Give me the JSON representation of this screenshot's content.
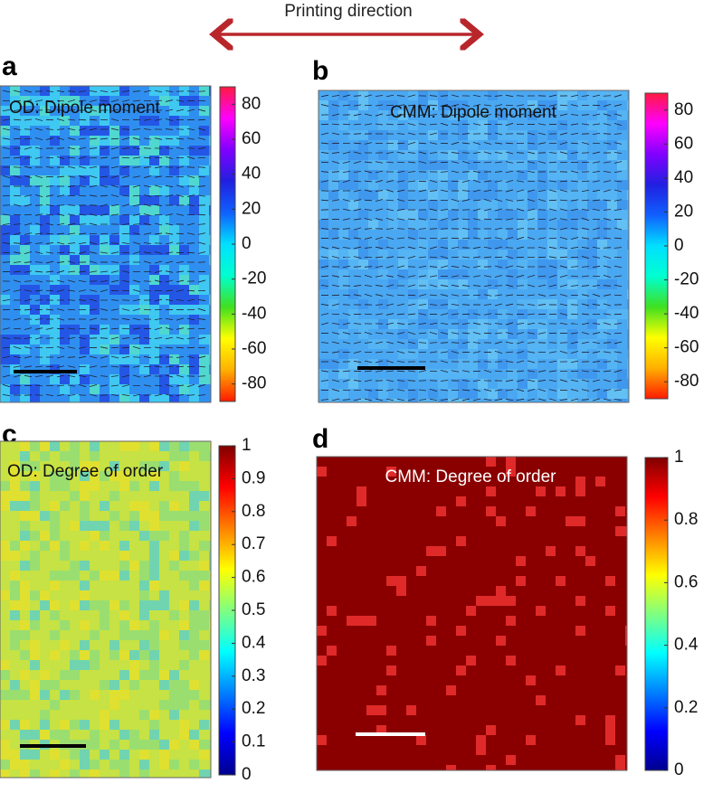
{
  "header": {
    "direction_label": "Printing direction"
  },
  "panels": [
    {
      "letter": "a",
      "title": "OD: Dipole moment",
      "colorbar": {
        "lim": [
          -90,
          90
        ],
        "ticks": [
          -80,
          -60,
          -40,
          -20,
          0,
          20,
          40,
          60,
          80
        ],
        "colormap": [
          "#ff1a00",
          "#ffb000",
          "#ffff00",
          "#40e020",
          "#00ffd0",
          "#00e0ff",
          "#1060ff",
          "#2020e0",
          "#8000ff",
          "#ff00ff",
          "#ff1a40"
        ]
      }
    },
    {
      "letter": "b",
      "title": "CMM: Dipole moment",
      "colorbar": {
        "lim": [
          -90,
          90
        ],
        "ticks": [
          -80,
          -60,
          -40,
          -20,
          0,
          20,
          40,
          60,
          80
        ],
        "colormap": [
          "#ff1a00",
          "#ffb000",
          "#ffff00",
          "#40e020",
          "#00ffd0",
          "#00e0ff",
          "#1060ff",
          "#2020e0",
          "#8000ff",
          "#ff00ff",
          "#ff1a40"
        ]
      }
    },
    {
      "letter": "c",
      "title": "OD: Degree of order",
      "colorbar": {
        "lim": [
          0,
          1
        ],
        "ticks": [
          0,
          0.1,
          0.2,
          0.3,
          0.4,
          0.5,
          0.6,
          0.7,
          0.8,
          0.9,
          1
        ],
        "colormap": [
          "#00008f",
          "#0000ff",
          "#0080ff",
          "#00ffff",
          "#80ff80",
          "#ffff00",
          "#ff8000",
          "#ff0000",
          "#800000"
        ]
      }
    },
    {
      "letter": "d",
      "title": "CMM: Degree of order",
      "colorbar": {
        "lim": [
          0,
          1
        ],
        "ticks": [
          0,
          0.2,
          0.4,
          0.6,
          0.8,
          1
        ],
        "colormap": [
          "#00008f",
          "#0000ff",
          "#0080ff",
          "#00ffff",
          "#80ff80",
          "#ffff00",
          "#ff8000",
          "#ff0000",
          "#800000"
        ]
      }
    }
  ]
}
